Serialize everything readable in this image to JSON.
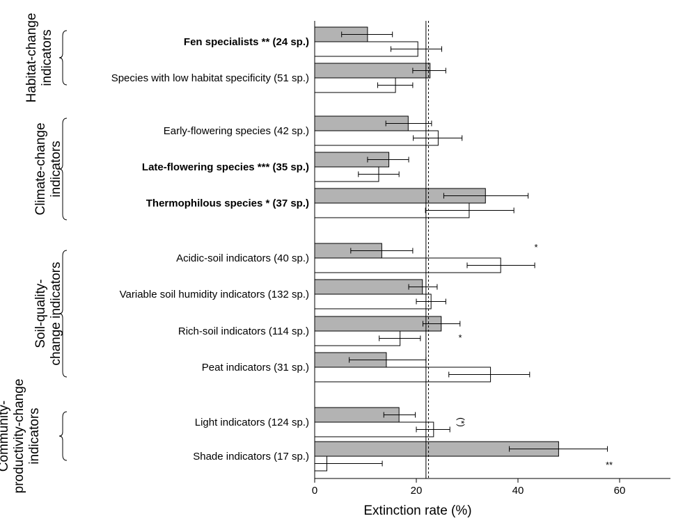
{
  "chart_data": {
    "type": "bar",
    "orientation": "horizontal",
    "xlabel": "Extinction rate (%)",
    "xlim": [
      0,
      70
    ],
    "xticks": [
      0,
      20,
      40,
      60
    ],
    "reference_lines": [
      {
        "style": "solid",
        "value": 21.9
      },
      {
        "style": "dashed",
        "value": 22.4
      }
    ],
    "colors": {
      "gray_series": "#b3b3b3",
      "white_series": "#ffffff",
      "stroke": "#000000"
    },
    "groups": [
      {
        "label": [
          "Habitat-change",
          "indicators"
        ],
        "categories": [
          0,
          1
        ]
      },
      {
        "label": [
          "Climate-change",
          "indicators"
        ],
        "categories": [
          2,
          3,
          4
        ]
      },
      {
        "label": [
          "Soil-quality-",
          "change indicators"
        ],
        "categories": [
          5,
          6,
          7,
          8
        ]
      },
      {
        "label": [
          "Community-",
          "productivity-change",
          "indicators"
        ],
        "categories": [
          9,
          10
        ]
      }
    ],
    "categories": [
      {
        "label": "Fen specialists **  (24 sp.)",
        "bold": true,
        "gray": 10.4,
        "gray_err": [
          5.3,
          15.3
        ],
        "white": 20.3,
        "white_err": [
          15.0,
          25.0
        ],
        "sig": ""
      },
      {
        "label": "Species with low habitat specificity (51 sp.)",
        "bold": false,
        "gray": 22.7,
        "gray_err": [
          19.3,
          25.8
        ],
        "white": 15.9,
        "white_err": [
          12.4,
          19.3
        ],
        "sig": ""
      },
      {
        "label": "Early-flowering species (42 sp.)",
        "bold": false,
        "gray": 18.4,
        "gray_err": [
          14.0,
          23.0
        ],
        "white": 24.3,
        "white_err": [
          19.4,
          29.0
        ],
        "sig": ""
      },
      {
        "label": "Late-flowering species *** (35 sp.)",
        "bold": true,
        "gray": 14.6,
        "gray_err": [
          10.4,
          18.5
        ],
        "white": 12.6,
        "white_err": [
          8.6,
          16.6
        ],
        "sig": ""
      },
      {
        "label": "Thermophilous species * (37 sp.)",
        "bold": true,
        "gray": 33.6,
        "gray_err": [
          25.4,
          42.0
        ],
        "white": 30.4,
        "white_err": [
          21.8,
          39.2
        ],
        "sig": ""
      },
      {
        "label": "Acidic-soil indicators (40 sp.)",
        "bold": false,
        "gray": 13.2,
        "gray_err": [
          7.1,
          19.3
        ],
        "white": 36.6,
        "white_err": [
          30.0,
          43.3
        ],
        "sig": "*"
      },
      {
        "label": "Variable soil humidity indicators (132 sp.)",
        "bold": false,
        "gray": 21.2,
        "gray_err": [
          18.5,
          24.1
        ],
        "white": 22.9,
        "white_err": [
          20.0,
          25.8
        ],
        "sig": ""
      },
      {
        "label": "Rich-soil indicators (114 sp.)",
        "bold": false,
        "gray": 24.9,
        "gray_err": [
          21.3,
          28.6
        ],
        "white": 16.8,
        "white_err": [
          12.7,
          20.8
        ],
        "sig": "*"
      },
      {
        "label": "Peat indicators (31 sp.)",
        "bold": false,
        "gray": 14.1,
        "gray_err": [
          6.8,
          21.9
        ],
        "white": 34.6,
        "white_err": [
          26.4,
          42.3
        ],
        "sig": ""
      },
      {
        "label": "Light indicators (124 sp.)",
        "bold": false,
        "gray": 16.6,
        "gray_err": [
          13.6,
          19.8
        ],
        "white": 23.4,
        "white_err": [
          20.0,
          26.6
        ],
        "sig": "(*)"
      },
      {
        "label": "Shade indicators (17 sp.)",
        "bold": false,
        "gray": 48.0,
        "gray_err": [
          38.3,
          57.6
        ],
        "white": 2.4,
        "white_err": [
          0,
          13.3
        ],
        "sig": "**"
      }
    ]
  }
}
